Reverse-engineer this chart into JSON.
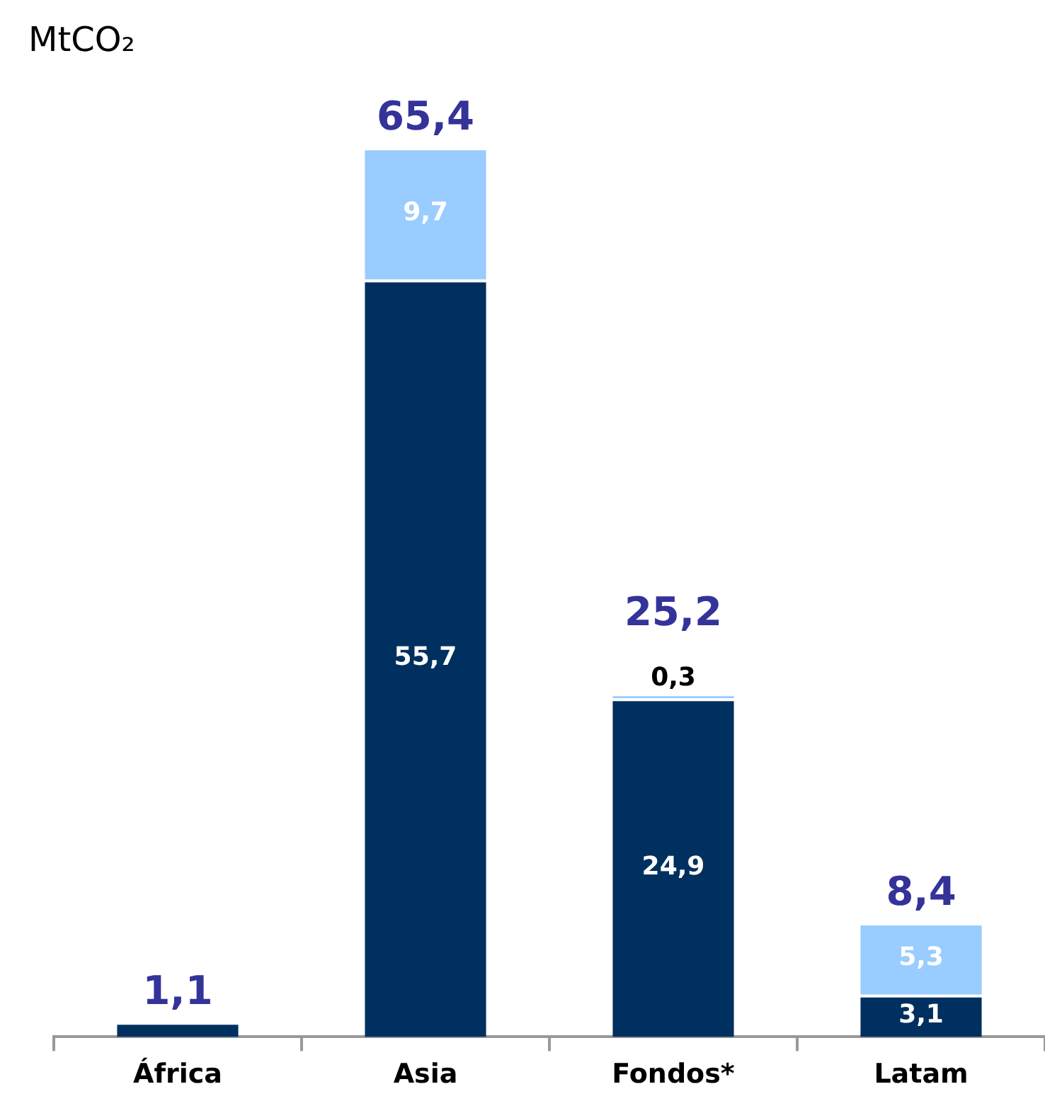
{
  "chart_data": {
    "type": "bar",
    "stacked": true,
    "ylabel": "MtCO₂",
    "categories": [
      "África",
      "Asia",
      "Fondos*",
      "Latam"
    ],
    "series": [
      {
        "color": "#00305f",
        "values": [
          1.1,
          55.7,
          24.9,
          3.1
        ],
        "value_labels": [
          null,
          "55,7",
          "24,9",
          "3,1"
        ]
      },
      {
        "color": "#99ccff",
        "values": [
          null,
          9.7,
          0.3,
          5.3
        ],
        "value_labels": [
          null,
          "9,7",
          "0,3",
          "5,3"
        ]
      }
    ],
    "totals": [
      "1,1",
      "65,4",
      "25,2",
      "8,4"
    ],
    "legend": false,
    "grid": false
  }
}
